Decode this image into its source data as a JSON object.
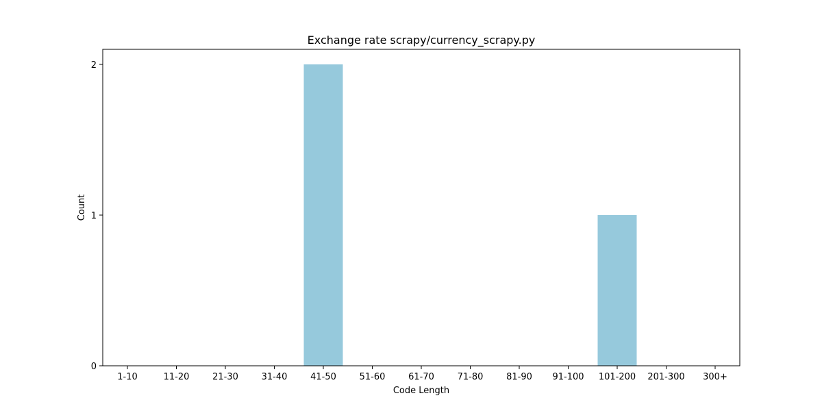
{
  "chart_data": {
    "type": "bar",
    "title": "Exchange rate scrapy/currency_scrapy.py",
    "xlabel": "Code Length",
    "ylabel": "Count",
    "categories": [
      "1-10",
      "11-20",
      "21-30",
      "31-40",
      "41-50",
      "51-60",
      "61-70",
      "71-80",
      "81-90",
      "91-100",
      "101-200",
      "201-300",
      "300+"
    ],
    "values": [
      0,
      0,
      0,
      0,
      2,
      0,
      0,
      0,
      0,
      0,
      1,
      0,
      0
    ],
    "ylim": [
      0,
      2.1
    ],
    "yticks": [
      "0",
      "1",
      "2"
    ],
    "grid": false,
    "legend": "none",
    "bar_color": "#96c9dc"
  }
}
